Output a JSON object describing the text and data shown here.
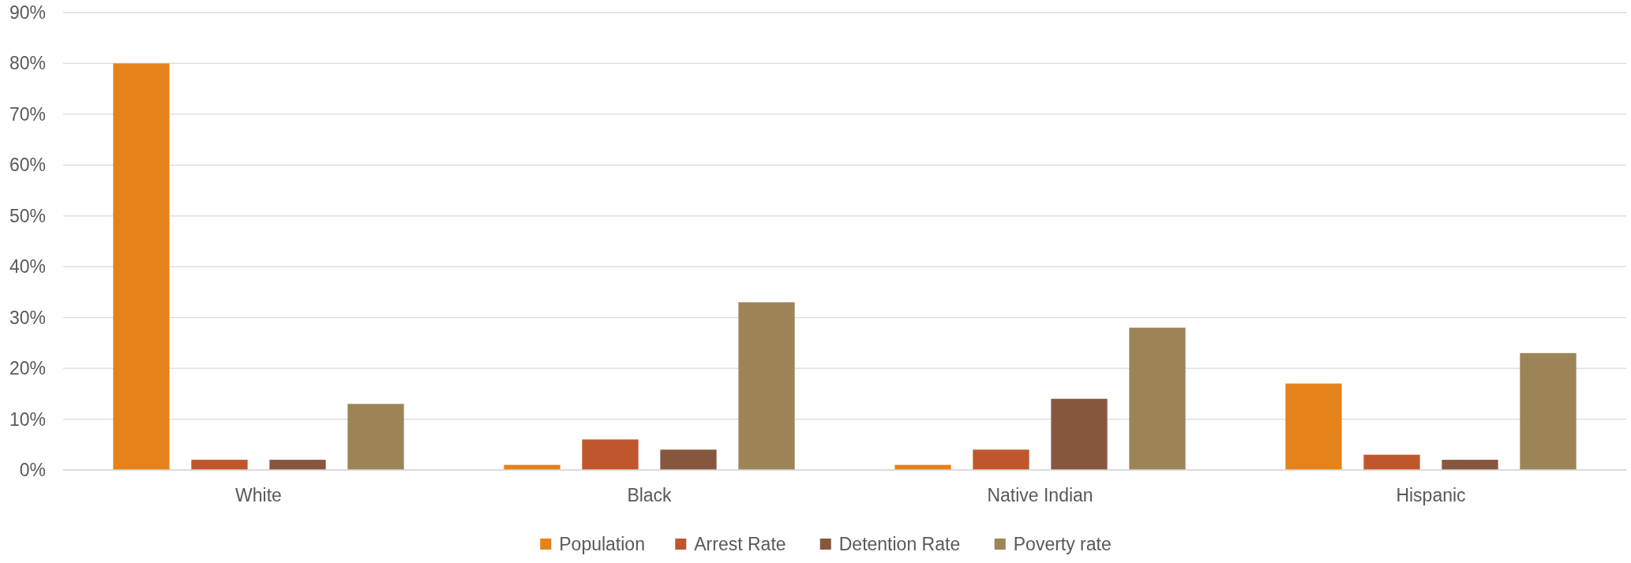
{
  "chart_data": {
    "type": "bar",
    "categories": [
      "White",
      "Black",
      "Native Indian",
      "Hispanic"
    ],
    "series": [
      {
        "name": "Population",
        "color": "#e6821a",
        "values": [
          80,
          1,
          1,
          17
        ]
      },
      {
        "name": "Arrest Rate",
        "color": "#c0572c",
        "values": [
          2,
          6,
          4,
          3
        ]
      },
      {
        "name": "Detention Rate",
        "color": "#87563f",
        "values": [
          2,
          4,
          14,
          2
        ]
      },
      {
        "name": "Poverty rate",
        "color": "#9c8457",
        "values": [
          13,
          33,
          28,
          23
        ]
      }
    ],
    "ylim": [
      0,
      90
    ],
    "yticks": [
      {
        "value": 0,
        "label": "0%"
      },
      {
        "value": 10,
        "label": "10%"
      },
      {
        "value": 20,
        "label": "20%"
      },
      {
        "value": 30,
        "label": "30%"
      },
      {
        "value": 40,
        "label": "40%"
      },
      {
        "value": 50,
        "label": "50%"
      },
      {
        "value": 60,
        "label": "60%"
      },
      {
        "value": 70,
        "label": "70%"
      },
      {
        "value": 80,
        "label": "80%"
      },
      {
        "value": 90,
        "label": "90%"
      }
    ],
    "grid": "y",
    "legend": "bottom"
  }
}
